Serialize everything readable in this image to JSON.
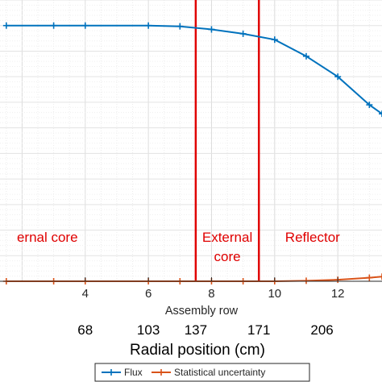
{
  "chart_data": {
    "type": "line",
    "xlabel": "Assembly row",
    "secondary_xlabel": "Radial position (cm)",
    "x_ticks": [
      4,
      6,
      8,
      10,
      12
    ],
    "secondary_ticks": [
      {
        "row": 4,
        "label": "68"
      },
      {
        "row": 6,
        "label": "103"
      },
      {
        "row": 7.5,
        "label": "137"
      },
      {
        "row": 9.5,
        "label": "171"
      },
      {
        "row": 11.5,
        "label": "206"
      }
    ],
    "xlim": [
      1.3,
      13.4
    ],
    "ylim": [
      0,
      1.1
    ],
    "grid": true,
    "legend_position": "bottom",
    "series": [
      {
        "name": "Flux",
        "color": "#0072BD",
        "x": [
          1.5,
          3,
          4,
          6,
          7,
          8,
          9,
          10,
          11,
          12,
          13,
          13.4
        ],
        "y": [
          1.0,
          1.0,
          1.0,
          1.0,
          0.997,
          0.985,
          0.968,
          0.945,
          0.88,
          0.8,
          0.69,
          0.655
        ]
      },
      {
        "name": "Statistical uncertainty",
        "color": "#D95319",
        "x": [
          1.5,
          3,
          4,
          6,
          7,
          8,
          9,
          10,
          11,
          12,
          13,
          13.4
        ],
        "y": [
          0.0,
          0.0,
          0.0,
          0.0,
          0.0,
          0.0,
          0.0,
          0.0,
          0.002,
          0.006,
          0.014,
          0.018
        ]
      }
    ],
    "boundaries": [
      {
        "x": 7.5,
        "color": "#E00000"
      },
      {
        "x": 9.5,
        "color": "#E00000"
      }
    ],
    "regions": [
      {
        "lines": [
          "ernal core"
        ],
        "x": 2.8,
        "color": "#E00000"
      },
      {
        "lines": [
          "External",
          "core"
        ],
        "x": 8.5,
        "color": "#E00000"
      },
      {
        "lines": [
          "Reflector"
        ],
        "x": 11.2,
        "color": "#E00000"
      }
    ]
  }
}
